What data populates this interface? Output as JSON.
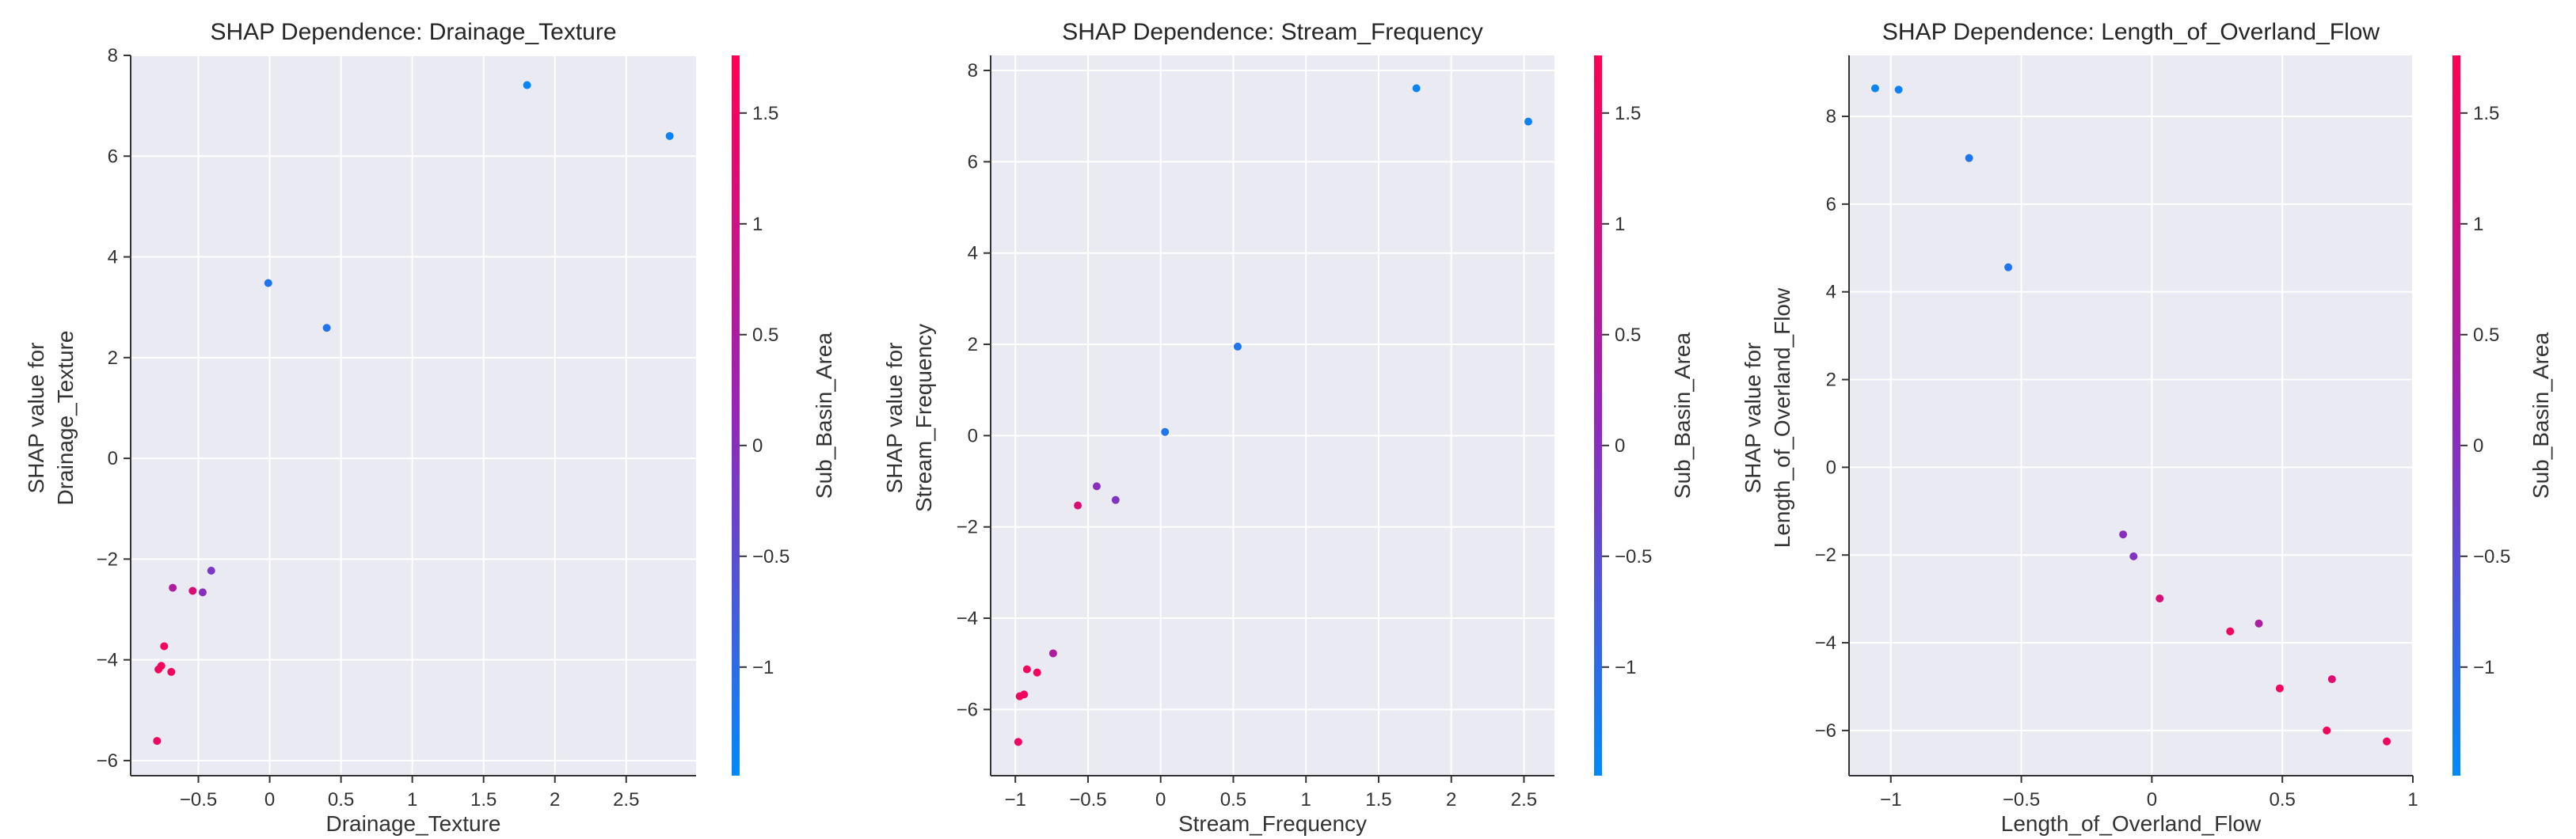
{
  "colorbar": {
    "label": "Sub_Basin_Area",
    "range": [
      -1.49,
      1.76
    ],
    "ticks": [
      -1.0,
      -0.5,
      0.0,
      0.5,
      1.0,
      1.5
    ],
    "low_color": "#008afb",
    "mid_color": "#9526b8",
    "high_color": "#ff0052"
  },
  "chart_data": [
    {
      "type": "scatter",
      "title": "SHAP Dependence: Drainage_Texture",
      "xlabel": "Drainage_Texture",
      "ylabel": [
        "SHAP value for",
        "Drainage_Texture"
      ],
      "xlim": [
        -0.975,
        2.99
      ],
      "ylim": [
        -6.3,
        8.0
      ],
      "xticks": [
        -0.5,
        0.0,
        0.5,
        1.0,
        1.5,
        2.0,
        2.5
      ],
      "yticks": [
        -6,
        -4,
        -2,
        0,
        2,
        4,
        6,
        8
      ],
      "grid": true,
      "points": [
        {
          "x": 1.805,
          "y": 7.41,
          "c": -1.4
        },
        {
          "x": 2.805,
          "y": 6.4,
          "c": -1.35
        },
        {
          "x": -0.01,
          "y": 3.48,
          "c": -1.15
        },
        {
          "x": 0.4,
          "y": 2.59,
          "c": -1.15
        },
        {
          "x": -0.41,
          "y": -2.23,
          "c": -0.15
        },
        {
          "x": -0.68,
          "y": -2.57,
          "c": 0.5
        },
        {
          "x": -0.54,
          "y": -2.63,
          "c": 1.2
        },
        {
          "x": -0.47,
          "y": -2.66,
          "c": 0.0
        },
        {
          "x": -0.74,
          "y": -3.73,
          "c": 1.6
        },
        {
          "x": -0.76,
          "y": -4.12,
          "c": 1.6
        },
        {
          "x": -0.78,
          "y": -4.19,
          "c": 1.55
        },
        {
          "x": -0.69,
          "y": -4.24,
          "c": 1.6
        },
        {
          "x": -0.79,
          "y": -5.61,
          "c": 1.5
        }
      ]
    },
    {
      "type": "scatter",
      "title": "SHAP Dependence: Stream_Frequency",
      "xlabel": "Stream_Frequency",
      "ylabel": [
        "SHAP value for",
        "Stream_Frequency"
      ],
      "xlim": [
        -1.17,
        2.71
      ],
      "ylim": [
        -7.45,
        8.33
      ],
      "xticks": [
        -1.0,
        -0.5,
        0.0,
        0.5,
        1.0,
        1.5,
        2.0,
        2.5
      ],
      "yticks": [
        -6,
        -4,
        -2,
        0,
        2,
        4,
        6,
        8
      ],
      "grid": true,
      "points": [
        {
          "x": 1.76,
          "y": 7.61,
          "c": -1.4
        },
        {
          "x": 2.53,
          "y": 6.88,
          "c": -1.35
        },
        {
          "x": 0.53,
          "y": 1.95,
          "c": -1.15
        },
        {
          "x": 0.03,
          "y": 0.08,
          "c": -1.15
        },
        {
          "x": -0.44,
          "y": -1.11,
          "c": 0.0
        },
        {
          "x": -0.31,
          "y": -1.41,
          "c": -0.1
        },
        {
          "x": -0.57,
          "y": -1.53,
          "c": 1.2
        },
        {
          "x": -0.74,
          "y": -4.77,
          "c": 0.5
        },
        {
          "x": -0.92,
          "y": -5.12,
          "c": 1.6
        },
        {
          "x": -0.85,
          "y": -5.19,
          "c": 1.6
        },
        {
          "x": -0.94,
          "y": -5.67,
          "c": 1.55
        },
        {
          "x": -0.97,
          "y": -5.71,
          "c": 1.6
        },
        {
          "x": -0.98,
          "y": -6.71,
          "c": 1.5
        }
      ]
    },
    {
      "type": "scatter",
      "title": "SHAP Dependence: Length_of_Overland_Flow",
      "xlabel": "Length_of_Overland_Flow",
      "ylabel": [
        "SHAP value for",
        "Length_of_Overland_Flow"
      ],
      "xlim": [
        -1.16,
        1.0
      ],
      "ylim": [
        -7.03,
        9.39
      ],
      "xticks": [
        -1.0,
        -0.5,
        0.0,
        0.5,
        1.0
      ],
      "yticks": [
        -6,
        -4,
        -2,
        0,
        2,
        4,
        6,
        8
      ],
      "grid": true,
      "points": [
        {
          "x": -1.06,
          "y": 8.64,
          "c": -1.4
        },
        {
          "x": -0.97,
          "y": 8.61,
          "c": -1.35
        },
        {
          "x": -0.7,
          "y": 7.05,
          "c": -1.15
        },
        {
          "x": -0.55,
          "y": 4.56,
          "c": -1.15
        },
        {
          "x": -0.11,
          "y": -1.53,
          "c": 0.0
        },
        {
          "x": -0.07,
          "y": -2.03,
          "c": -0.1
        },
        {
          "x": 0.03,
          "y": -2.99,
          "c": 1.2
        },
        {
          "x": 0.3,
          "y": -3.74,
          "c": 1.6
        },
        {
          "x": 0.41,
          "y": -3.56,
          "c": 0.5
        },
        {
          "x": 0.49,
          "y": -5.04,
          "c": 1.6
        },
        {
          "x": 0.69,
          "y": -4.83,
          "c": 1.3
        },
        {
          "x": 0.67,
          "y": -6.0,
          "c": 1.6
        },
        {
          "x": 0.9,
          "y": -6.25,
          "c": 1.55
        }
      ]
    }
  ]
}
